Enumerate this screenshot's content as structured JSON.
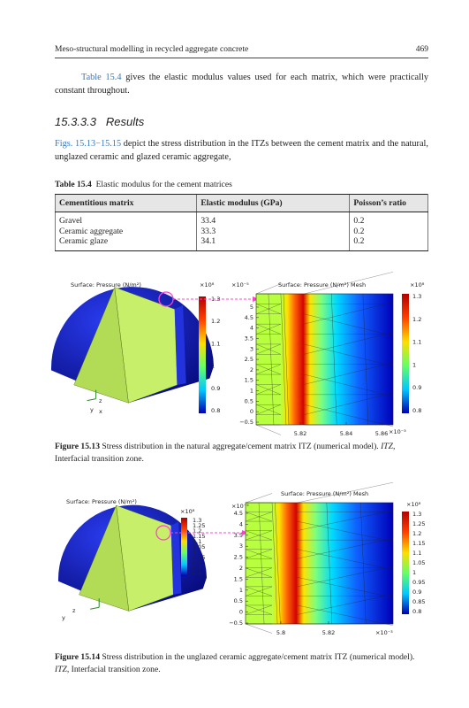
{
  "header": {
    "title": "Meso-structural modelling in recycled aggregate concrete",
    "page": "469"
  },
  "paragraph_1": {
    "link": "Table 15.4",
    "text": " gives the elastic modulus values used for each matrix, which were practically constant throughout."
  },
  "section": {
    "number": "15.3.3.3",
    "title": "Results"
  },
  "paragraph_2": {
    "link": "Figs. 15.13−15.15",
    "text": " depict the stress distribution in the ITZs between the cement matrix and the natural, unglazed ceramic and glazed ceramic aggregate,"
  },
  "table": {
    "label": "Table 15.4",
    "caption": "Elastic modulus for the cement matrices",
    "columns": [
      "Cementitious matrix",
      "Elastic modulus (GPa)",
      "Poisson’s ratio"
    ],
    "rows": [
      [
        "Gravel",
        "33.4",
        "0.2"
      ],
      [
        "Ceramic aggregate",
        "33.3",
        "0.2"
      ],
      [
        "Ceramic glaze",
        "34.1",
        "0.2"
      ]
    ]
  },
  "figures": [
    {
      "label": "Figure 15.13",
      "caption": " Stress distribution in the natural aggregate/cement matrix ITZ (numerical model). ",
      "abbr": "ITZ",
      "abbr_text": ", Interfacial transition zone.",
      "left": {
        "title": "Surface: Pressure (N/m²)",
        "exponent": "×10⁸",
        "colorbar": [
          "1.3",
          "1.2",
          "1.1",
          "1",
          "0.9",
          "0.8"
        ],
        "axes": [
          "z",
          "y",
          "x"
        ]
      },
      "right": {
        "title": "Surface: Pressure (N/m²) Mesh",
        "y_exponent": "×10⁻⁵",
        "yticks": [
          "5",
          "4.5",
          "4",
          "3.5",
          "3",
          "2.5",
          "2",
          "1.5",
          "1",
          "0.5",
          "0",
          "−0.5"
        ],
        "xticks": [
          "5.82",
          "5.84",
          "5.86"
        ],
        "x_exponent": "×10⁻³",
        "c_exponent": "×10⁸",
        "colorbar": [
          "1.3",
          "1.2",
          "1.1",
          "1",
          "0.9",
          "0.8"
        ]
      }
    },
    {
      "label": "Figure 15.14",
      "caption": " Stress distribution in the unglazed ceramic aggregate/cement matrix ITZ (numerical model). ",
      "abbr": "ITZ",
      "abbr_text": ", Interfacial transition zone.",
      "left": {
        "title": "Surface: Pressure (N/m²)",
        "exponent": "×10⁸",
        "colorbar": [
          "1.3",
          "1.25",
          "1.2",
          "1.15",
          "1.1",
          "1.05",
          "1",
          "0.95",
          "0.9",
          "0.85",
          "0.8"
        ],
        "axes": [
          "z",
          "y"
        ]
      },
      "right": {
        "title": "Surface: Pressure (N/m²) Mesh",
        "y_exponent": "×10⁻⁵",
        "yticks": [
          "4.5",
          "4",
          "3.5",
          "3",
          "2.5",
          "2",
          "1.5",
          "1",
          "0.5",
          "0",
          "−0.5"
        ],
        "xticks": [
          "5.8",
          "5.82"
        ],
        "x_exponent": "×10⁻³",
        "c_exponent": "×10⁸",
        "colorbar": [
          "1.3",
          "1.25",
          "1.2",
          "1.15",
          "1.1",
          "1.05",
          "1",
          "0.95",
          "0.9",
          "0.85",
          "0.8"
        ]
      }
    }
  ]
}
